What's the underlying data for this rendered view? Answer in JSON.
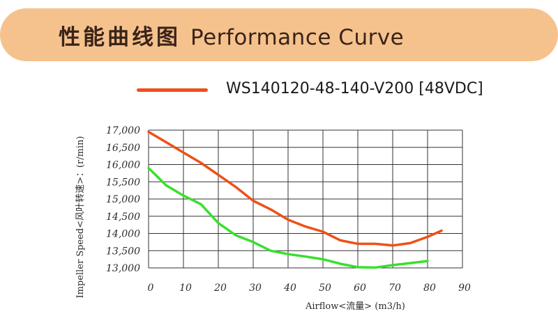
{
  "header": {
    "title_cn": "性能曲线图",
    "title_en": "Performance Curve",
    "banner_color": "#f5c28e"
  },
  "chart_data": {
    "type": "line",
    "legend": {
      "position": "top",
      "entries": [
        {
          "label": "WS140120-48-140-V200 [48VDC]",
          "color": "#ee5018"
        }
      ]
    },
    "xlabel": "Airflow<流量> (m3/h)",
    "ylabel": "Impeller Speed<风叶转速>：(r/min)",
    "xlim": [
      0,
      90
    ],
    "ylim": [
      13000,
      17000
    ],
    "x_ticks": [
      "0",
      "10",
      "20",
      "30",
      "40",
      "50",
      "60",
      "70",
      "80",
      "90"
    ],
    "y_ticks": [
      "17,000",
      "16,500",
      "16,000",
      "15,500",
      "15,000",
      "14,500",
      "14,000",
      "13,500",
      "13,000"
    ],
    "grid": true,
    "series": [
      {
        "name": "WS140120-48-140-V200 [48VDC]",
        "color": "#ee5018",
        "x": [
          0,
          5,
          10,
          15,
          20,
          25,
          30,
          35,
          40,
          45,
          50,
          55,
          60,
          65,
          70,
          75,
          80,
          84
        ],
        "y": [
          16950,
          16650,
          16350,
          16050,
          15700,
          15350,
          14950,
          14700,
          14400,
          14200,
          14050,
          13800,
          13700,
          13700,
          13650,
          13720,
          13900,
          14080
        ]
      },
      {
        "color": "#38e02c",
        "x": [
          0,
          2,
          5,
          10,
          15,
          20,
          25,
          30,
          35,
          40,
          45,
          50,
          55,
          60,
          65,
          70,
          75,
          80
        ],
        "y": [
          15900,
          15700,
          15400,
          15100,
          14850,
          14300,
          13950,
          13750,
          13500,
          13400,
          13330,
          13250,
          13120,
          13020,
          13010,
          13080,
          13140,
          13200
        ]
      }
    ]
  }
}
